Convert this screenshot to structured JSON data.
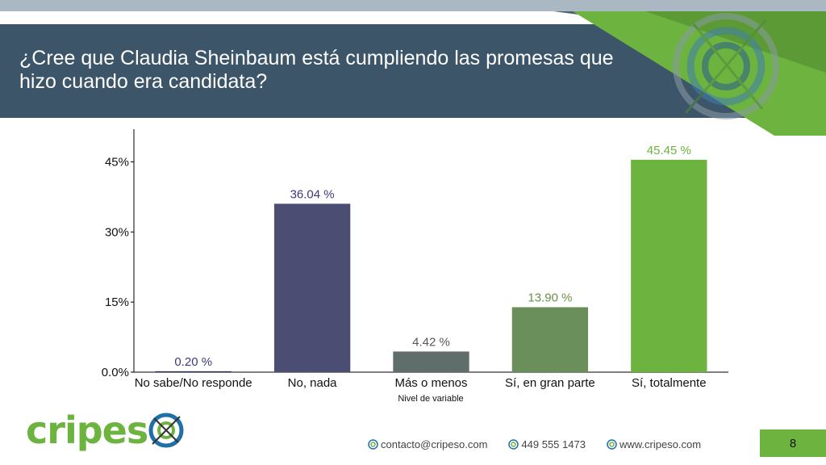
{
  "slide": {
    "title": "¿Cree que Claudia Sheinbaum está cumpliendo las promesas que hizo cuando era candidata?",
    "page_number": "8"
  },
  "colors": {
    "title_band": "#3d5569",
    "accent_green": "#6db33f",
    "brand_blue": "#1f6fa8"
  },
  "logo": {
    "part1": "cripes",
    "part2": "o"
  },
  "footer": {
    "email": "contacto@cripeso.com",
    "phone": "449 555 1473",
    "website": "www.cripeso.com"
  },
  "chart_data": {
    "type": "bar",
    "categories": [
      "No sabe/No responde",
      "No, nada",
      "Más o menos",
      "Sí, en gran parte",
      "Sí, totalmente"
    ],
    "values": [
      0.2,
      36.04,
      4.42,
      13.9,
      45.45
    ],
    "value_labels": [
      "0.20 %",
      "36.04 %",
      "4.42 %",
      "13.90 %",
      "45.45 %"
    ],
    "bar_colors": [
      "#2f2e6a",
      "#4b4d73",
      "#5f6e6b",
      "#6b8f5a",
      "#6db33f"
    ],
    "label_colors": [
      "#3a3a7a",
      "#3a3a7a",
      "#555555",
      "#6a8f4a",
      "#6db33f"
    ],
    "xlabel": "Nivel de variable",
    "ylabel": "",
    "yticks": [
      "0.0%",
      "15%",
      "30%",
      "45%"
    ],
    "ytick_values": [
      0,
      15,
      30,
      45
    ],
    "ylim": [
      0,
      52
    ],
    "grid": false,
    "legend": "none"
  }
}
